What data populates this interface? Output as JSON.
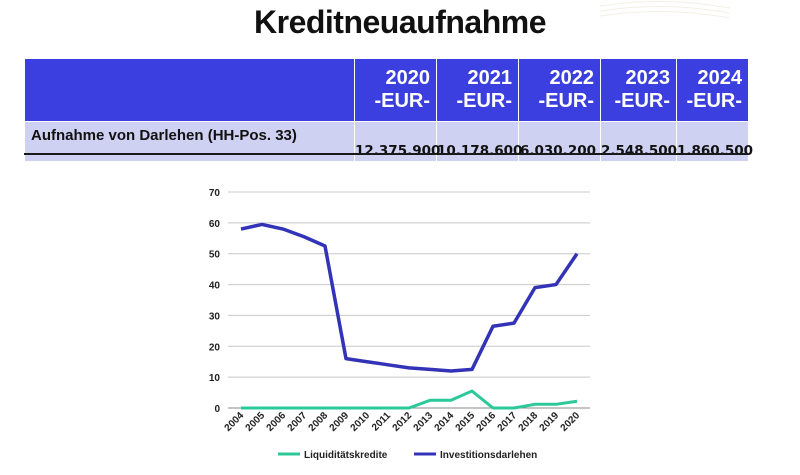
{
  "title": "Kreditneuaufnahme",
  "table": {
    "row_label": "Aufnahme von Darlehen (HH-Pos. 33)",
    "columns": [
      {
        "year": "2020",
        "unit": "-EUR-",
        "value": "12.375.900"
      },
      {
        "year": "2021",
        "unit": "-EUR-",
        "value": "10.178.600"
      },
      {
        "year": "2022",
        "unit": "-EUR-",
        "value": "6.030.200"
      },
      {
        "year": "2023",
        "unit": "-EUR-",
        "value": "2.548.500"
      },
      {
        "year": "2024",
        "unit": "-EUR-",
        "value": "1.860.500"
      }
    ]
  },
  "colors": {
    "header_blue": "#3b3fe0",
    "row_lavender": "#cfd1f3",
    "liquiditaet": "#2bc99a",
    "investition": "#3333b8"
  },
  "chart_data": {
    "type": "line",
    "categories": [
      "2004",
      "2005",
      "2006",
      "2007",
      "2008",
      "2009",
      "2010",
      "2011",
      "2012",
      "2013",
      "2014",
      "2015",
      "2016",
      "2017",
      "2018",
      "2019",
      "2020"
    ],
    "ylim": [
      0,
      70
    ],
    "yticks": [
      "0",
      "10",
      "20",
      "30",
      "40",
      "50",
      "60",
      "70"
    ],
    "grid": true,
    "legend_position": "bottom",
    "series": [
      {
        "name": "Liquiditätskredite",
        "values": [
          0,
          0,
          0,
          0,
          0,
          0,
          0,
          0,
          0,
          2.5,
          2.5,
          5.5,
          0,
          0,
          1.2,
          1.2,
          2.2
        ]
      },
      {
        "name": "Investitionsdarlehen",
        "values": [
          58,
          59.5,
          58,
          55.5,
          52.5,
          16,
          15,
          14,
          13,
          12.5,
          12,
          12.5,
          26.5,
          27.5,
          39,
          40,
          50
        ]
      }
    ]
  }
}
